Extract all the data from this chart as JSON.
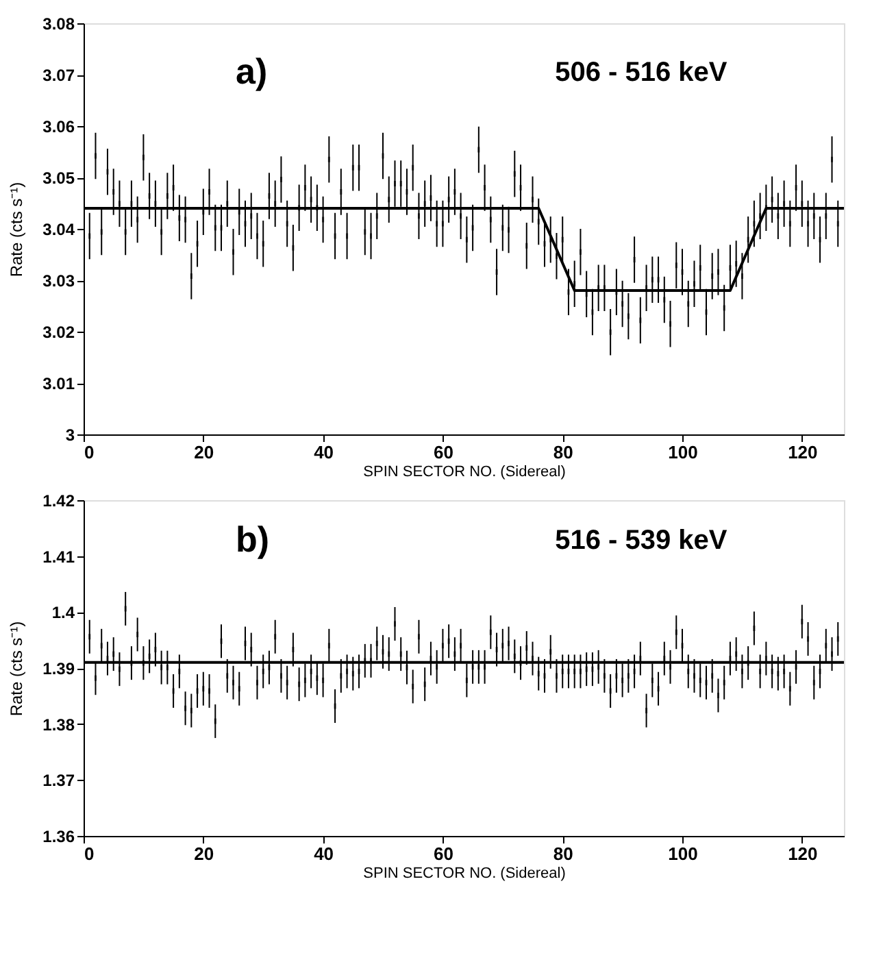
{
  "chart_data": [
    {
      "type": "scatter",
      "xlabel": "SPIN SECTOR NO. (Sidereal)",
      "ylabel": "Rate (cts s⁻¹)",
      "annotations": [
        "a)",
        "506 - 516 keV"
      ],
      "xlim": [
        0,
        127
      ],
      "xticks": [
        0,
        20,
        40,
        60,
        80,
        100,
        120
      ],
      "ylim": [
        3,
        3.08
      ],
      "yticks": [
        3,
        3.01,
        3.02,
        3.03,
        3.04,
        3.05,
        3.06,
        3.07,
        3.08
      ],
      "series": [
        {
          "type": "scatter",
          "color": "#000000",
          "x": [
            1,
            2,
            3,
            4,
            5,
            6,
            7,
            8,
            9,
            10,
            11,
            12,
            13,
            14,
            15,
            16,
            17,
            18,
            19,
            20,
            21,
            22,
            23,
            24,
            25,
            26,
            27,
            28,
            29,
            30,
            31,
            32,
            33,
            34,
            35,
            36,
            37,
            38,
            39,
            40,
            41,
            42,
            43,
            44,
            45,
            46,
            47,
            48,
            49,
            50,
            51,
            52,
            53,
            54,
            55,
            56,
            57,
            58,
            59,
            60,
            61,
            62,
            63,
            64,
            65,
            66,
            67,
            68,
            69,
            70,
            71,
            72,
            73,
            74,
            75,
            76,
            77,
            78,
            79,
            80,
            81,
            82,
            83,
            84,
            85,
            86,
            87,
            88,
            89,
            90,
            91,
            92,
            93,
            94,
            95,
            96,
            97,
            98,
            99,
            100,
            101,
            102,
            103,
            104,
            105,
            106,
            107,
            108,
            109,
            110,
            111,
            112,
            113,
            114,
            115,
            116,
            117,
            118,
            119,
            120,
            121,
            122,
            123,
            124,
            125,
            126
          ],
          "values": [
            3.0386,
            3.0542,
            3.0394,
            3.0511,
            3.0472,
            3.0449,
            3.0394,
            3.0449,
            3.0418,
            3.0539,
            3.0464,
            3.0449,
            3.0394,
            3.0464,
            3.048,
            3.0421,
            3.0418,
            3.0308,
            3.0371,
            3.0433,
            3.0472,
            3.0402,
            3.0402,
            3.0449,
            3.0355,
            3.0433,
            3.041,
            3.0425,
            3.0386,
            3.0371,
            3.0464,
            3.0449,
            3.0496,
            3.041,
            3.0363,
            3.0441,
            3.048,
            3.0457,
            3.0441,
            3.0418,
            3.0535,
            3.0386,
            3.0472,
            3.0386,
            3.0519,
            3.0519,
            3.0394,
            3.0386,
            3.0425,
            3.0542,
            3.0457,
            3.0488,
            3.0488,
            3.0472,
            3.0519,
            3.0425,
            3.0449,
            3.046,
            3.041,
            3.041,
            3.0457,
            3.0472,
            3.0425,
            3.0379,
            3.0402,
            3.0554,
            3.048,
            3.0418,
            3.0316,
            3.0402,
            3.0398,
            3.0507,
            3.048,
            3.0367,
            3.0457,
            3.0414,
            3.0371,
            3.0379,
            3.0347,
            3.0379,
            3.0277,
            3.0293,
            3.0355,
            3.0273,
            3.0238,
            3.0285,
            3.0285,
            3.0199,
            3.0277,
            3.0254,
            3.023,
            3.034,
            3.0222,
            3.0285,
            3.0301,
            3.0301,
            3.0262,
            3.0215,
            3.0329,
            3.0316,
            3.0254,
            3.0293,
            3.0324,
            3.0238,
            3.0308,
            3.0316,
            3.0246,
            3.0324,
            3.0332,
            3.0308,
            3.0379,
            3.041,
            3.0425,
            3.0441,
            3.0457,
            3.0425,
            3.0449,
            3.041,
            3.048,
            3.0449,
            3.041,
            3.0425,
            3.0379,
            3.0425,
            3.0535,
            3.041
          ],
          "errors": [
            0.0045,
            0.0045,
            0.0045,
            0.0045,
            0.0045,
            0.0045,
            0.0045,
            0.0045,
            0.0045,
            0.0045,
            0.0045,
            0.0045,
            0.0045,
            0.0045,
            0.0045,
            0.0045,
            0.0045,
            0.0045,
            0.0045,
            0.0045,
            0.0045,
            0.0045,
            0.0045,
            0.0045,
            0.0045,
            0.0045,
            0.0045,
            0.0045,
            0.0045,
            0.0045,
            0.0045,
            0.0045,
            0.0045,
            0.0045,
            0.0045,
            0.0045,
            0.0045,
            0.0045,
            0.0045,
            0.0045,
            0.0045,
            0.0045,
            0.0045,
            0.0045,
            0.0045,
            0.0045,
            0.0045,
            0.0045,
            0.0045,
            0.0045,
            0.0045,
            0.0045,
            0.0045,
            0.0045,
            0.0045,
            0.0045,
            0.0045,
            0.0045,
            0.0045,
            0.0045,
            0.0045,
            0.0045,
            0.0045,
            0.0045,
            0.0045,
            0.0045,
            0.0045,
            0.0045,
            0.0045,
            0.0045,
            0.0045,
            0.0045,
            0.0045,
            0.0045,
            0.0045,
            0.0045,
            0.0045,
            0.0045,
            0.0045,
            0.0045,
            0.0045,
            0.0045,
            0.0045,
            0.0045,
            0.0045,
            0.0045,
            0.0045,
            0.0045,
            0.0045,
            0.0045,
            0.0045,
            0.0045,
            0.0045,
            0.0045,
            0.0045,
            0.0045,
            0.0045,
            0.0045,
            0.0045,
            0.0045,
            0.0045,
            0.0045,
            0.0045,
            0.0045,
            0.0045,
            0.0045,
            0.0045,
            0.0045,
            0.0045,
            0.0045,
            0.0045,
            0.0045,
            0.0045,
            0.0045,
            0.0045,
            0.0045,
            0.0045,
            0.0045,
            0.0045,
            0.0045,
            0.0045,
            0.0045,
            0.0045,
            0.0045,
            0.0045,
            0.0045
          ]
        },
        {
          "type": "line",
          "line_style": "solid",
          "color": "#000000",
          "x": [
            0,
            76,
            82,
            108,
            114,
            127
          ],
          "values": [
            3.044,
            3.044,
            3.028,
            3.028,
            3.044,
            3.044
          ]
        }
      ]
    },
    {
      "type": "scatter",
      "xlabel": "SPIN SECTOR NO. (Sidereal)",
      "ylabel": "Rate (cts s⁻¹)",
      "annotations": [
        "b)",
        "516 - 539 keV"
      ],
      "xlim": [
        0,
        127
      ],
      "xticks": [
        0,
        20,
        40,
        60,
        80,
        100,
        120
      ],
      "ylim": [
        1.36,
        1.42
      ],
      "yticks": [
        1.36,
        1.37,
        1.38,
        1.39,
        1.4,
        1.41,
        1.42
      ],
      "series": [
        {
          "type": "scatter",
          "color": "#000000",
          "x": [
            1,
            2,
            3,
            4,
            5,
            6,
            7,
            8,
            9,
            10,
            11,
            12,
            13,
            14,
            15,
            16,
            17,
            18,
            19,
            20,
            21,
            22,
            23,
            24,
            25,
            26,
            27,
            28,
            29,
            30,
            31,
            32,
            33,
            34,
            35,
            36,
            37,
            38,
            39,
            40,
            41,
            42,
            43,
            44,
            45,
            46,
            47,
            48,
            49,
            50,
            51,
            52,
            53,
            54,
            55,
            56,
            57,
            58,
            59,
            60,
            61,
            62,
            63,
            64,
            65,
            66,
            67,
            68,
            69,
            70,
            71,
            72,
            73,
            74,
            75,
            76,
            77,
            78,
            79,
            80,
            81,
            82,
            83,
            84,
            85,
            86,
            87,
            88,
            89,
            90,
            91,
            92,
            93,
            94,
            95,
            96,
            97,
            98,
            99,
            100,
            101,
            102,
            103,
            104,
            105,
            106,
            107,
            108,
            109,
            110,
            111,
            112,
            113,
            114,
            115,
            116,
            117,
            118,
            119,
            120,
            121,
            122,
            123,
            124,
            125,
            126
          ],
          "values": [
            1.3956,
            1.3882,
            1.394,
            1.3917,
            1.3925,
            1.3898,
            1.4006,
            1.3909,
            1.396,
            1.3909,
            1.3921,
            1.3933,
            1.3901,
            1.3901,
            1.3859,
            1.3894,
            1.3828,
            1.3824,
            1.3859,
            1.3863,
            1.3859,
            1.3805,
            1.3948,
            1.3886,
            1.3874,
            1.3863,
            1.3944,
            1.3933,
            1.3874,
            1.3894,
            1.3901,
            1.3956,
            1.3886,
            1.3874,
            1.3933,
            1.3871,
            1.3878,
            1.3894,
            1.3882,
            1.3878,
            1.394,
            1.3832,
            1.3886,
            1.3894,
            1.389,
            1.3894,
            1.3913,
            1.3913,
            1.3944,
            1.3929,
            1.3925,
            1.3979,
            1.3925,
            1.3901,
            1.3867,
            1.3956,
            1.3871,
            1.3917,
            1.3902,
            1.394,
            1.3948,
            1.3925,
            1.394,
            1.3878,
            1.3902,
            1.3902,
            1.3902,
            1.3964,
            1.3933,
            1.394,
            1.3944,
            1.3921,
            1.3909,
            1.3936,
            1.3917,
            1.389,
            1.3886,
            1.3929,
            1.3886,
            1.3894,
            1.3894,
            1.3894,
            1.3894,
            1.3898,
            1.3898,
            1.3902,
            1.3886,
            1.3859,
            1.3886,
            1.3878,
            1.3886,
            1.3894,
            1.3917,
            1.3824,
            1.3878,
            1.3863,
            1.3917,
            1.3902,
            1.3964,
            1.394,
            1.3894,
            1.3886,
            1.3878,
            1.3874,
            1.3886,
            1.3851,
            1.3874,
            1.3917,
            1.3925,
            1.3894,
            1.3909,
            1.3971,
            1.3894,
            1.3917,
            1.3894,
            1.389,
            1.3894,
            1.3863,
            1.3902,
            1.3983,
            1.3952,
            1.3874,
            1.3894,
            1.394,
            1.3925,
            1.3952
          ],
          "errors": [
            0.003,
            0.003,
            0.003,
            0.003,
            0.003,
            0.003,
            0.003,
            0.003,
            0.003,
            0.003,
            0.003,
            0.003,
            0.003,
            0.003,
            0.003,
            0.003,
            0.003,
            0.003,
            0.003,
            0.003,
            0.003,
            0.003,
            0.003,
            0.003,
            0.003,
            0.003,
            0.003,
            0.003,
            0.003,
            0.003,
            0.003,
            0.003,
            0.003,
            0.003,
            0.003,
            0.003,
            0.003,
            0.003,
            0.003,
            0.003,
            0.003,
            0.003,
            0.003,
            0.003,
            0.003,
            0.003,
            0.003,
            0.003,
            0.003,
            0.003,
            0.003,
            0.003,
            0.003,
            0.003,
            0.003,
            0.003,
            0.003,
            0.003,
            0.003,
            0.003,
            0.003,
            0.003,
            0.003,
            0.003,
            0.003,
            0.003,
            0.003,
            0.003,
            0.003,
            0.003,
            0.003,
            0.003,
            0.003,
            0.003,
            0.003,
            0.003,
            0.003,
            0.003,
            0.003,
            0.003,
            0.003,
            0.003,
            0.003,
            0.003,
            0.003,
            0.003,
            0.003,
            0.003,
            0.003,
            0.003,
            0.003,
            0.003,
            0.003,
            0.003,
            0.003,
            0.003,
            0.003,
            0.003,
            0.003,
            0.003,
            0.003,
            0.003,
            0.003,
            0.003,
            0.003,
            0.003,
            0.003,
            0.003,
            0.003,
            0.003,
            0.003,
            0.003,
            0.003,
            0.003,
            0.003,
            0.003,
            0.003,
            0.003,
            0.003,
            0.003,
            0.003,
            0.003,
            0.003,
            0.003,
            0.003,
            0.003
          ]
        },
        {
          "type": "line",
          "line_style": "solid",
          "color": "#000000",
          "x": [
            0,
            127
          ],
          "values": [
            1.391,
            1.391
          ]
        }
      ]
    }
  ]
}
